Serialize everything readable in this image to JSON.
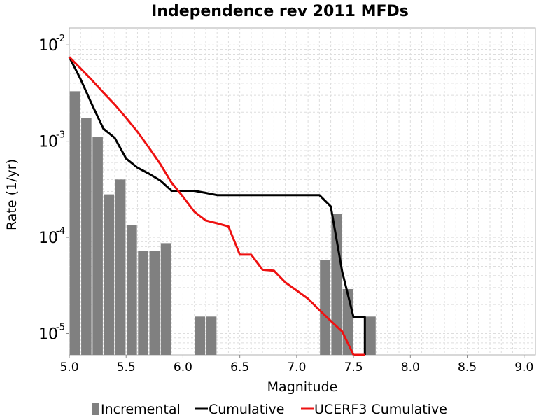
{
  "chart_data": {
    "type": "bar",
    "title": "Independence rev 2011 MFDs",
    "xlabel": "Magnitude",
    "ylabel": "Rate (1/yr)",
    "y_scale": "log",
    "xlim": [
      5.0,
      9.1
    ],
    "ylim": [
      6e-06,
      0.015
    ],
    "grid": true,
    "legend_placement": "bottom",
    "x_ticks": [
      "5.0",
      "5.5",
      "6.0",
      "6.5",
      "7.0",
      "7.5",
      "8.0",
      "8.5",
      "9.0"
    ],
    "y_ticks": [
      {
        "base": "10",
        "exp": "-5",
        "value": 1e-05
      },
      {
        "base": "10",
        "exp": "-4",
        "value": 0.0001
      },
      {
        "base": "10",
        "exp": "-3",
        "value": 0.001
      },
      {
        "base": "10",
        "exp": "-2",
        "value": 0.01
      }
    ],
    "series": [
      {
        "name": "Incremental",
        "kind": "bar",
        "color": "#808080",
        "x": [
          5.05,
          5.15,
          5.25,
          5.35,
          5.45,
          5.55,
          5.65,
          5.75,
          5.85,
          6.15,
          6.25,
          7.25,
          7.35,
          7.45,
          7.65
        ],
        "values": [
          0.0033,
          0.00175,
          0.0011,
          0.00028,
          0.0004,
          0.000135,
          7.2e-05,
          7.2e-05,
          8.7e-05,
          1.5e-05,
          1.5e-05,
          5.8e-05,
          0.000175,
          2.9e-05,
          1.5e-05
        ]
      },
      {
        "name": "Cumulative",
        "kind": "line",
        "color": "#000000",
        "x": [
          5.0,
          5.1,
          5.2,
          5.3,
          5.4,
          5.5,
          5.6,
          5.7,
          5.8,
          5.9,
          6.0,
          6.1,
          6.2,
          6.3,
          6.4,
          6.5,
          6.6,
          6.7,
          6.8,
          6.9,
          7.0,
          7.1,
          7.2,
          7.3,
          7.4,
          7.5,
          7.6,
          7.6
        ],
        "values": [
          0.0075,
          0.0044,
          0.0024,
          0.00135,
          0.00108,
          0.00066,
          0.00053,
          0.00046,
          0.00039,
          0.000305,
          0.000305,
          0.000305,
          0.00029,
          0.000275,
          0.000275,
          0.000275,
          0.000275,
          0.000275,
          0.000275,
          0.000275,
          0.000275,
          0.000275,
          0.000275,
          0.00021,
          4.4e-05,
          1.48e-05,
          1.48e-05,
          6e-06
        ]
      },
      {
        "name": "UCERF3 Cumulative",
        "kind": "line",
        "color": "#ee1111",
        "x": [
          5.0,
          5.1,
          5.2,
          5.3,
          5.4,
          5.5,
          5.6,
          5.7,
          5.8,
          5.9,
          6.0,
          6.1,
          6.2,
          6.3,
          6.4,
          6.5,
          6.6,
          6.7,
          6.8,
          6.9,
          7.0,
          7.1,
          7.2,
          7.3,
          7.4,
          7.5,
          7.6
        ],
        "values": [
          0.0075,
          0.0057,
          0.0043,
          0.0032,
          0.0024,
          0.00175,
          0.00125,
          0.00086,
          0.00058,
          0.00037,
          0.000265,
          0.000185,
          0.00015,
          0.00014,
          0.00013,
          6.6e-05,
          6.6e-05,
          4.6e-05,
          4.5e-05,
          3.4e-05,
          2.8e-05,
          2.3e-05,
          1.75e-05,
          1.35e-05,
          1.05e-05,
          6e-06,
          6e-06
        ]
      }
    ]
  }
}
